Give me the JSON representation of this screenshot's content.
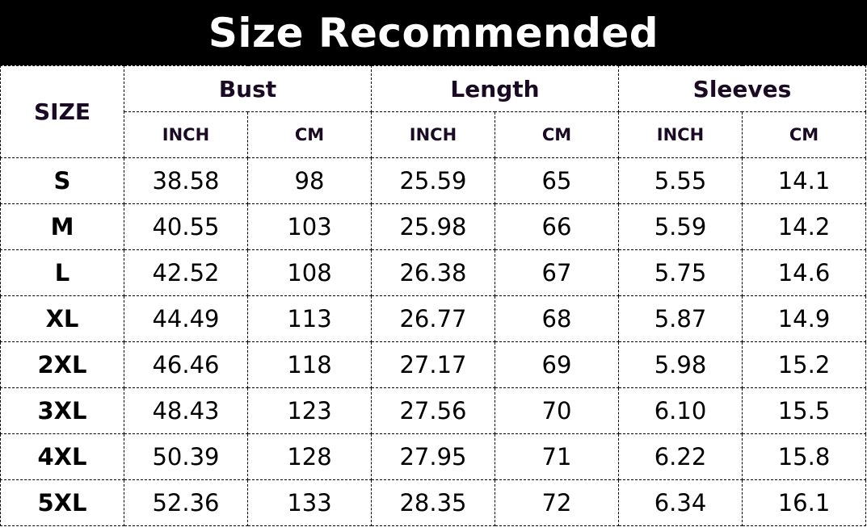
{
  "title": "Size Recommended",
  "header": {
    "size": "SIZE",
    "groups": [
      "Bust",
      "Length",
      "Sleeves"
    ],
    "units": [
      "INCH",
      "CM",
      "INCH",
      "CM",
      "INCH",
      "CM"
    ]
  },
  "rows": [
    {
      "size": "S",
      "values": [
        "38.58",
        "98",
        "25.59",
        "65",
        "5.55",
        "14.1"
      ]
    },
    {
      "size": "M",
      "values": [
        "40.55",
        "103",
        "25.98",
        "66",
        "5.59",
        "14.2"
      ]
    },
    {
      "size": "L",
      "values": [
        "42.52",
        "108",
        "26.38",
        "67",
        "5.75",
        "14.6"
      ]
    },
    {
      "size": "XL",
      "values": [
        "44.49",
        "113",
        "26.77",
        "68",
        "5.87",
        "14.9"
      ]
    },
    {
      "size": "2XL",
      "values": [
        "46.46",
        "118",
        "27.17",
        "69",
        "5.98",
        "15.2"
      ]
    },
    {
      "size": "3XL",
      "values": [
        "48.43",
        "123",
        "27.56",
        "70",
        "6.10",
        "15.5"
      ]
    },
    {
      "size": "4XL",
      "values": [
        "50.39",
        "128",
        "27.95",
        "71",
        "6.22",
        "15.8"
      ]
    },
    {
      "size": "5XL",
      "values": [
        "52.36",
        "133",
        "28.35",
        "72",
        "6.34",
        "16.1"
      ]
    }
  ]
}
